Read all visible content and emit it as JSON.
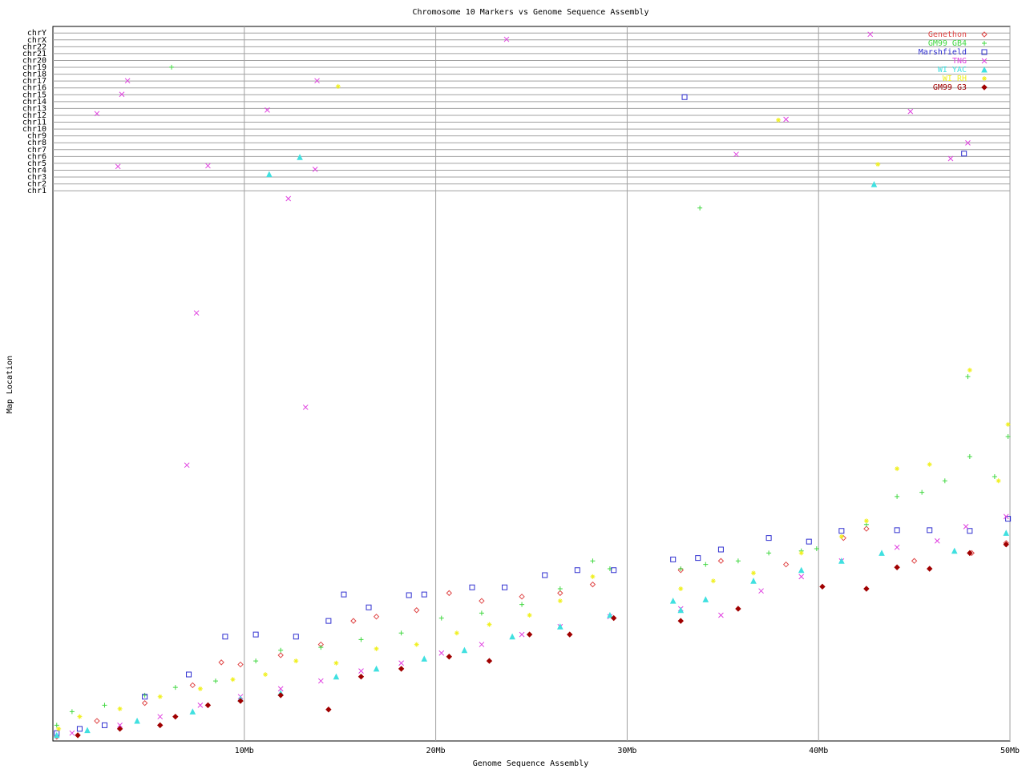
{
  "chart_data": {
    "type": "scatter",
    "title": "Chromosome 10 Markers vs Genome Sequence Assembly",
    "xlabel": "Genome Sequence Assembly",
    "ylabel": "Map Location",
    "xlim": [
      0,
      50
    ],
    "xticks": [
      {
        "value": 10,
        "label": "10Mb"
      },
      {
        "value": 20,
        "label": "20Mb"
      },
      {
        "value": 30,
        "label": "30Mb"
      },
      {
        "value": 40,
        "label": "40Mb"
      },
      {
        "value": 50,
        "label": "50Mb"
      }
    ],
    "ylim": [
      0,
      1000
    ],
    "yticks": [
      {
        "value": 770,
        "label": "chr1"
      },
      {
        "value": 779.6,
        "label": "chr2"
      },
      {
        "value": 789.2,
        "label": "chr3"
      },
      {
        "value": 798.8,
        "label": "chr4"
      },
      {
        "value": 808.4,
        "label": "chr5"
      },
      {
        "value": 818,
        "label": "chr6"
      },
      {
        "value": 827.6,
        "label": "chr7"
      },
      {
        "value": 837.2,
        "label": "chr8"
      },
      {
        "value": 846.8,
        "label": "chr9"
      },
      {
        "value": 856.4,
        "label": "chr10"
      },
      {
        "value": 866,
        "label": "chr11"
      },
      {
        "value": 875.6,
        "label": "chr12"
      },
      {
        "value": 885.2,
        "label": "chr13"
      },
      {
        "value": 894.8,
        "label": "chr14"
      },
      {
        "value": 904.4,
        "label": "chr15"
      },
      {
        "value": 914,
        "label": "chr16"
      },
      {
        "value": 923.6,
        "label": "chr17"
      },
      {
        "value": 933.2,
        "label": "chr18"
      },
      {
        "value": 942.8,
        "label": "chr19"
      },
      {
        "value": 952.4,
        "label": "chr20"
      },
      {
        "value": 962,
        "label": "chr21"
      },
      {
        "value": 971.6,
        "label": "chr22"
      },
      {
        "value": 981.2,
        "label": "chrX"
      },
      {
        "value": 990.8,
        "label": "chrY"
      }
    ],
    "grid": true,
    "legend": "upper right",
    "series": [
      {
        "name": "Genethon",
        "color": "#e04848",
        "marker": "diamond",
        "x": [
          0.2,
          2.3,
          4.8,
          7.3,
          8.8,
          9.8,
          11.9,
          14.0,
          15.7,
          16.9,
          19.0,
          20.7,
          22.4,
          24.5,
          26.5,
          28.2,
          32.8,
          34.9,
          38.3,
          41.3,
          42.5,
          45.0,
          48.0,
          49.8
        ],
        "values": [
          6,
          28,
          53,
          78,
          110,
          107,
          120,
          135,
          168,
          174,
          183,
          207,
          196,
          202,
          207,
          219,
          239,
          252,
          247,
          284,
          297,
          252,
          263,
          277
        ]
      },
      {
        "name": "GM99 GB4",
        "color": "#40d840",
        "marker": "plus",
        "x": [
          0.2,
          1.0,
          2.7,
          4.8,
          6.4,
          8.5,
          10.6,
          11.9,
          14.0,
          16.1,
          18.2,
          20.3,
          22.4,
          24.5,
          26.5,
          28.2,
          29.1,
          32.8,
          34.1,
          35.8,
          37.4,
          39.1,
          39.9,
          42.5,
          44.1,
          45.4,
          46.6,
          47.9,
          49.2,
          49.9,
          47.8,
          6.2,
          33.8
        ],
        "values": [
          22,
          41,
          50,
          64,
          75,
          84,
          112,
          127,
          131,
          142,
          151,
          172,
          179,
          191,
          213,
          252,
          241,
          241,
          247,
          252,
          263,
          266,
          269,
          303,
          342,
          348,
          364,
          398,
          370,
          426,
          510,
          943,
          746
        ]
      },
      {
        "name": "Marshfield",
        "color": "#3030d0",
        "marker": "square",
        "x": [
          0.2,
          1.4,
          2.7,
          4.8,
          7.1,
          9.0,
          10.6,
          12.7,
          14.4,
          15.2,
          16.5,
          18.6,
          19.4,
          21.9,
          23.6,
          25.7,
          27.4,
          29.3,
          32.4,
          33.7,
          34.9,
          37.4,
          39.5,
          41.2,
          44.1,
          45.8,
          47.9,
          49.9,
          47.6,
          33.0
        ],
        "values": [
          11,
          17,
          22,
          62,
          93,
          146,
          149,
          146,
          168,
          205,
          187,
          204,
          205,
          215,
          215,
          232,
          239,
          239,
          254,
          256,
          268,
          284,
          279,
          294,
          295,
          295,
          294,
          311,
          822,
          901
        ]
      },
      {
        "name": "TNG",
        "color": "#e040e0",
        "marker": "cross",
        "x": [
          1.0,
          3.5,
          5.6,
          7.7,
          9.8,
          11.9,
          14.0,
          16.1,
          18.2,
          20.3,
          22.4,
          24.5,
          26.5,
          29.1,
          32.8,
          34.9,
          37.0,
          39.1,
          41.2,
          44.1,
          46.2,
          47.7,
          49.8,
          7.5,
          7.0,
          13.2,
          12.3,
          2.3,
          3.6,
          3.9,
          23.7,
          42.7,
          35.7,
          47.8,
          44.8,
          38.3,
          3.4,
          8.1,
          13.7,
          13.8,
          11.2,
          46.9
        ],
        "values": [
          11,
          22,
          34,
          50,
          62,
          73,
          84,
          98,
          109,
          123,
          135,
          149,
          160,
          174,
          185,
          176,
          210,
          230,
          252,
          271,
          280,
          300,
          314,
          599,
          386,
          467,
          759,
          878,
          905,
          924,
          982,
          989,
          821,
          837,
          881,
          870,
          804,
          805,
          800,
          924,
          883,
          815
        ]
      },
      {
        "name": "WI YAC",
        "color": "#40e0e0",
        "marker": "triangle",
        "x": [
          0.2,
          1.8,
          4.4,
          7.3,
          9.8,
          11.9,
          14.8,
          16.9,
          19.4,
          21.5,
          24.0,
          26.5,
          29.1,
          32.4,
          32.8,
          34.1,
          36.6,
          39.1,
          41.2,
          43.3,
          47.1,
          49.8,
          42.9,
          11.3,
          12.9
        ],
        "values": [
          8,
          15,
          28,
          41,
          59,
          67,
          90,
          101,
          115,
          127,
          146,
          160,
          176,
          196,
          183,
          198,
          224,
          239,
          252,
          263,
          266,
          291,
          779,
          793,
          817
        ]
      },
      {
        "name": "WI RH",
        "color": "#f0f020",
        "marker": "star",
        "x": [
          0.3,
          1.4,
          3.5,
          5.6,
          7.7,
          9.4,
          11.1,
          12.7,
          14.8,
          16.9,
          19.0,
          21.1,
          22.8,
          24.9,
          26.5,
          28.2,
          32.8,
          34.5,
          36.6,
          39.1,
          41.2,
          42.5,
          44.1,
          45.8,
          47.9,
          49.9,
          49.4,
          14.9,
          37.9,
          43.1
        ],
        "values": [
          17,
          34,
          45,
          62,
          73,
          86,
          93,
          112,
          109,
          129,
          135,
          151,
          163,
          176,
          196,
          230,
          213,
          224,
          235,
          263,
          286,
          308,
          381,
          387,
          519,
          443,
          364,
          916,
          869,
          807
        ]
      },
      {
        "name": "GM99 G3",
        "color": "#a00000",
        "marker": "diamond-filled",
        "x": [
          1.3,
          3.5,
          5.6,
          8.1,
          9.8,
          11.9,
          14.4,
          16.1,
          18.2,
          20.7,
          22.8,
          24.9,
          27.0,
          29.3,
          32.8,
          35.8,
          40.2,
          42.5,
          44.1,
          45.8,
          47.9,
          49.8,
          6.4
        ],
        "values": [
          8,
          17,
          22,
          50,
          56,
          64,
          44,
          90,
          101,
          118,
          112,
          149,
          149,
          172,
          168,
          185,
          216,
          213,
          243,
          241,
          263,
          275,
          34
        ]
      }
    ]
  }
}
